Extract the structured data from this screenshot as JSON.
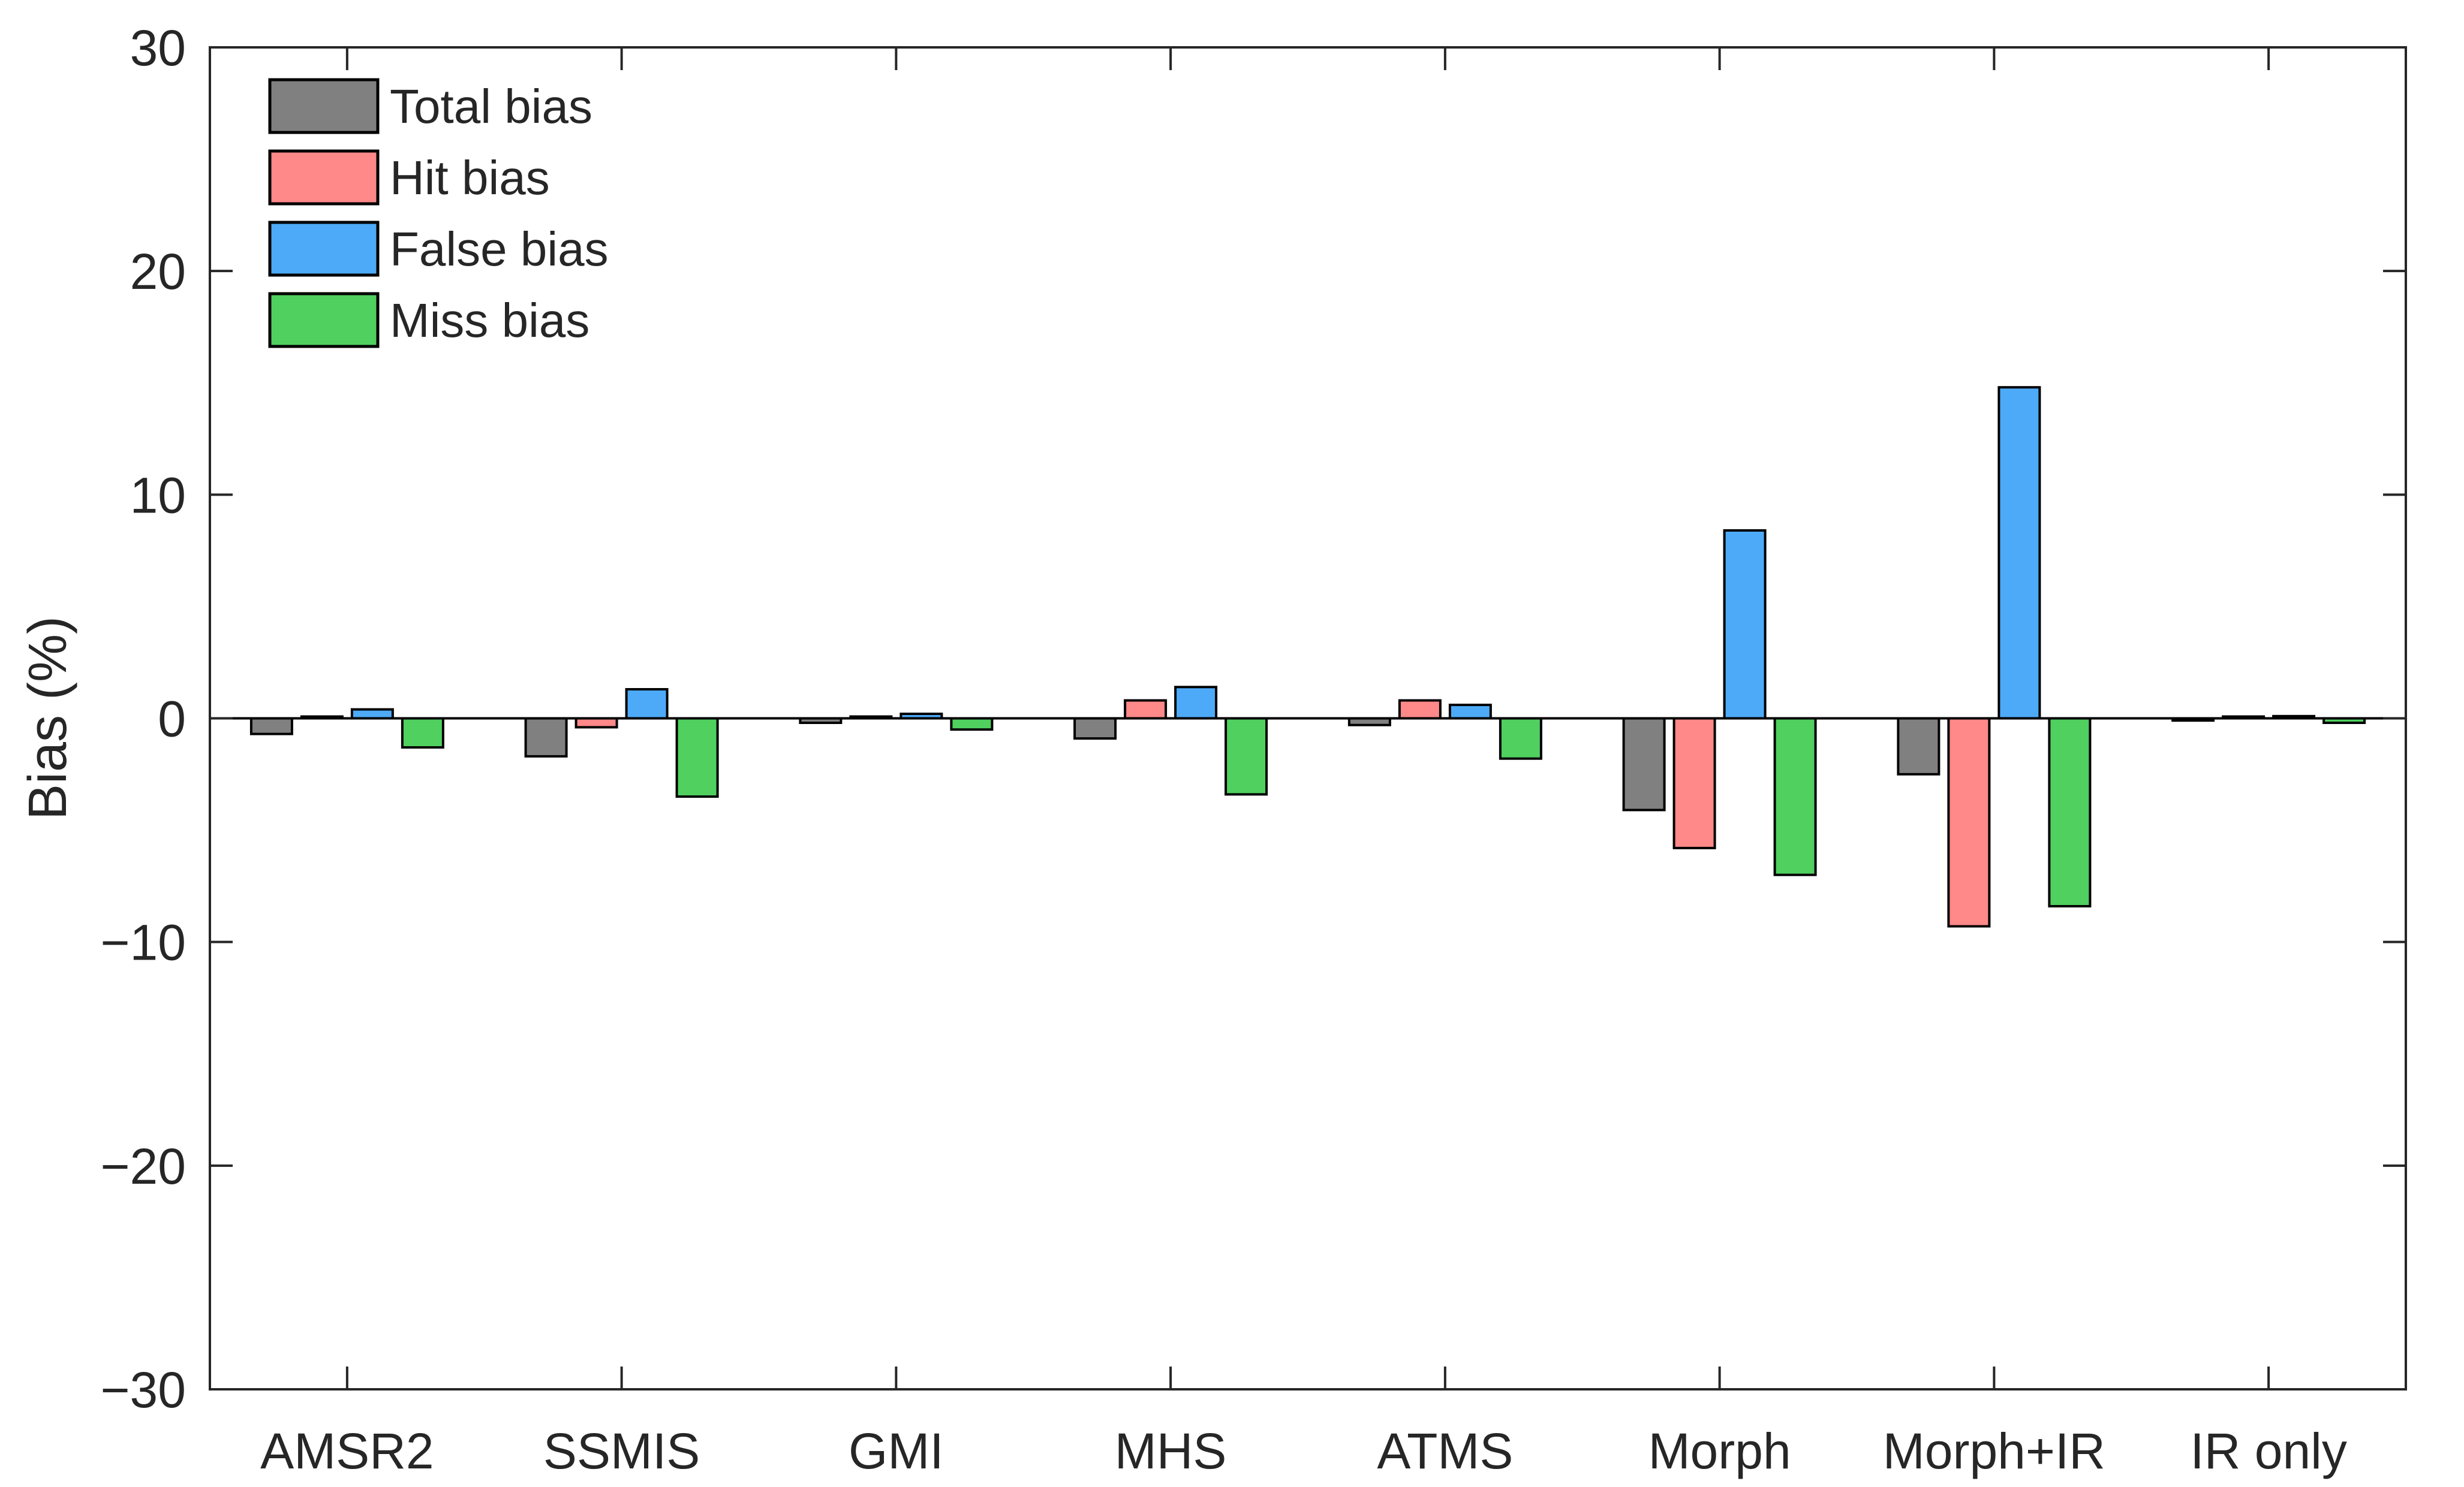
{
  "chart_data": {
    "type": "bar",
    "title": "",
    "xlabel": "",
    "ylabel": "Bias (%)",
    "ylim": [
      -30,
      30
    ],
    "yticks": [
      -30,
      -20,
      -10,
      0,
      10,
      20,
      30
    ],
    "ytick_labels": [
      "−30",
      "−20",
      "−10",
      "0",
      "10",
      "20",
      "30"
    ],
    "grid": false,
    "legend_position": "top-left",
    "categories": [
      "AMSR2",
      "SSMIS",
      "GMI",
      "MHS",
      "ATMS",
      "Morph",
      "Morph+IR",
      "IR only"
    ],
    "series": [
      {
        "name": "Total bias",
        "color": "#808080",
        "values": [
          -0.7,
          -1.7,
          -0.2,
          -0.9,
          -0.3,
          -4.1,
          -2.5,
          -0.1
        ]
      },
      {
        "name": "Hit bias",
        "color": "#ff8888",
        "values": [
          0.0,
          -0.4,
          0.0,
          0.8,
          0.8,
          -5.8,
          -9.3,
          0.0
        ]
      },
      {
        "name": "False bias",
        "color": "#4daaf8",
        "values": [
          0.4,
          1.3,
          0.2,
          1.4,
          0.6,
          8.4,
          14.8,
          0.1
        ]
      },
      {
        "name": "Miss bias",
        "color": "#4fd05f",
        "values": [
          -1.3,
          -3.5,
          -0.5,
          -3.4,
          -1.8,
          -7.0,
          -8.4,
          -0.2
        ]
      }
    ]
  }
}
